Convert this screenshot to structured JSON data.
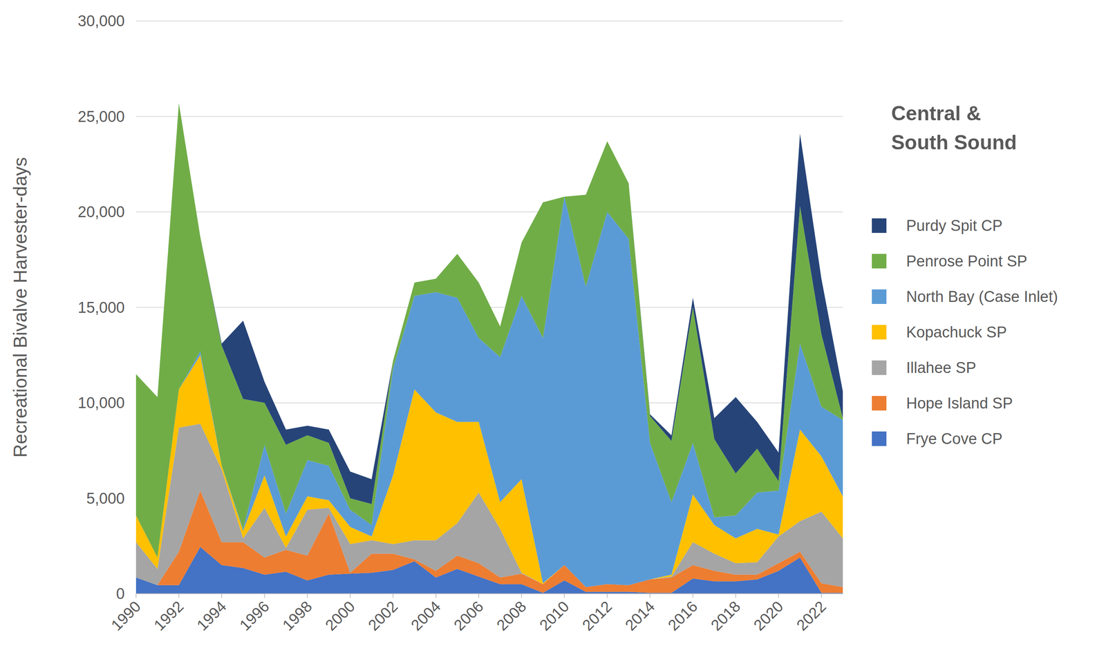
{
  "chart_data": {
    "type": "area",
    "stacked": true,
    "grid": true,
    "legend": "right",
    "title": "Central & South Sound",
    "y_label": "Recreational Bivalve Harvester-days",
    "x": [
      1990,
      1991,
      1992,
      1993,
      1994,
      1995,
      1996,
      1997,
      1998,
      1999,
      2000,
      2001,
      2002,
      2003,
      2004,
      2005,
      2006,
      2007,
      2008,
      2009,
      2010,
      2011,
      2012,
      2013,
      2014,
      2015,
      2016,
      2017,
      2018,
      2019,
      2020,
      2021,
      2022,
      2023
    ],
    "xlim": [
      1990,
      2023
    ],
    "xticks": [
      1990,
      1992,
      1994,
      1996,
      1998,
      2000,
      2002,
      2004,
      2006,
      2008,
      2010,
      2012,
      2014,
      2016,
      2018,
      2020,
      2022
    ],
    "ylim": [
      0,
      30000
    ],
    "yticks": [
      0,
      {
        "value": 5000,
        "label": "5,000"
      },
      {
        "value": 10000,
        "label": "10,000"
      },
      {
        "value": 15000,
        "label": "15,000"
      },
      {
        "value": 20000,
        "label": "20,000"
      },
      {
        "value": 25000,
        "label": "25,000"
      },
      {
        "value": 30000,
        "label": "30,000"
      }
    ],
    "series": [
      {
        "name": "Frye Cove CP",
        "color": "#4472c4",
        "values": [
          850,
          450,
          450,
          2450,
          1500,
          1350,
          1000,
          1150,
          700,
          1000,
          1050,
          1100,
          1250,
          1700,
          850,
          1300,
          900,
          500,
          500,
          50,
          700,
          100,
          100,
          100,
          50,
          50,
          800,
          650,
          650,
          750,
          1200,
          1900,
          50,
          50
        ]
      },
      {
        "name": "Hope Island SP",
        "color": "#ed7d31",
        "values": [
          0,
          0,
          1750,
          2950,
          1200,
          1350,
          900,
          1150,
          1300,
          3200,
          50,
          1000,
          850,
          100,
          350,
          700,
          700,
          350,
          550,
          450,
          800,
          250,
          400,
          350,
          700,
          800,
          700,
          550,
          350,
          250,
          400,
          300,
          500,
          300
        ]
      },
      {
        "name": "Illahee SP",
        "color": "#a5a5a5",
        "values": [
          1850,
          850,
          6500,
          3500,
          3800,
          200,
          2600,
          100,
          2400,
          300,
          1500,
          700,
          500,
          1000,
          1600,
          1700,
          3700,
          2550,
          50,
          0,
          0,
          0,
          0,
          0,
          0,
          50,
          1200,
          900,
          600,
          650,
          1400,
          1600,
          3750,
          2550
        ]
      },
      {
        "name": "Kopachuck SP",
        "color": "#ffc000",
        "values": [
          1400,
          600,
          2000,
          3600,
          200,
          400,
          1700,
          600,
          700,
          400,
          900,
          200,
          3600,
          7900,
          6700,
          5300,
          3700,
          1400,
          4900,
          50,
          0,
          0,
          0,
          0,
          0,
          100,
          2500,
          1500,
          1300,
          1750,
          100,
          4800,
          2900,
          2200
        ]
      },
      {
        "name": "North Bay (Case Inlet)",
        "color": "#5b9bd5",
        "values": [
          0,
          0,
          0,
          200,
          0,
          100,
          1600,
          1200,
          1900,
          1800,
          900,
          600,
          5600,
          4900,
          6300,
          6500,
          4400,
          7600,
          9600,
          12850,
          19300,
          15750,
          19500,
          18150,
          7150,
          3800,
          2700,
          400,
          1200,
          1900,
          2300,
          4500,
          2600,
          4000
        ]
      },
      {
        "name": "Penrose Point SP",
        "color": "#70ad47",
        "values": [
          7400,
          8400,
          15000,
          6000,
          6300,
          6800,
          2200,
          3600,
          1300,
          1200,
          600,
          1100,
          400,
          700,
          700,
          2300,
          2900,
          1600,
          2800,
          7100,
          0,
          4800,
          3700,
          2900,
          1400,
          3200,
          7100,
          4100,
          2200,
          2300,
          500,
          7200,
          3800,
          100
        ]
      },
      {
        "name": "Purdy Spit CP",
        "color": "#264478",
        "values": [
          0,
          0,
          0,
          0,
          100,
          4100,
          1100,
          800,
          500,
          700,
          1400,
          1300,
          0,
          0,
          0,
          0,
          0,
          0,
          0,
          0,
          0,
          0,
          0,
          0,
          100,
          300,
          500,
          1100,
          4000,
          1400,
          1500,
          3800,
          2900,
          1400
        ]
      }
    ]
  }
}
